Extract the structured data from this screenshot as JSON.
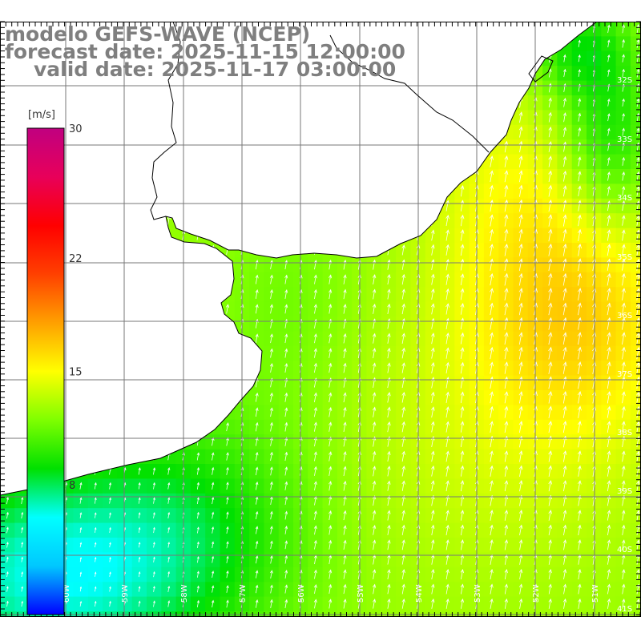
{
  "header": {
    "model": "modelo GEFS-WAVE (NCEP)",
    "forecast": "forecast date: 2025-11-15 12:00:00",
    "valid": "valid date: 2025-11-17 03:00:00"
  },
  "colorbar": {
    "unit": "[m/s]",
    "ticks": [
      {
        "label": "30",
        "value": 30
      },
      {
        "label": "22",
        "value": 22
      },
      {
        "label": "15",
        "value": 15
      },
      {
        "label": "8",
        "value": 8
      }
    ],
    "range": [
      0,
      30
    ],
    "stops": [
      "#0000ff",
      "#00c8ff",
      "#00ffff",
      "#00e000",
      "#7fff00",
      "#ffff00",
      "#ffa000",
      "#ff4000",
      "#ff0000",
      "#e8005a",
      "#c00080"
    ]
  },
  "map": {
    "lat_labels": [
      "32S",
      "33S",
      "34S",
      "35S",
      "36S",
      "37S",
      "38S",
      "39S",
      "40S",
      "41S"
    ],
    "lon_labels": [
      "60W",
      "59W",
      "58W",
      "57W",
      "56W",
      "55W",
      "54W",
      "53W",
      "52W",
      "51W"
    ],
    "land_color": "#ffffff",
    "coast_color": "#000000",
    "arrow_color": "#ffffff"
  }
}
